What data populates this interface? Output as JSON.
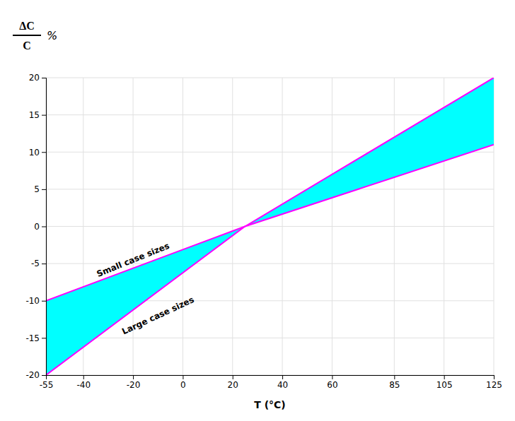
{
  "chart_data": {
    "type": "area",
    "xlabel": "T (°C)",
    "ylabel_top": "ΔC",
    "ylabel_bottom": "C",
    "ylabel_unit": "%",
    "x": [
      -55,
      25,
      125
    ],
    "series": [
      {
        "values": [
          -10,
          0,
          20
        ],
        "color": "#ff00ff"
      },
      {
        "values": [
          -20,
          0,
          11
        ],
        "color": "#ff00ff"
      }
    ],
    "color": "#00ffff",
    "xlim": [
      -55,
      125
    ],
    "ylim": [
      -20,
      20
    ],
    "xticks": [
      -55,
      -40,
      -20,
      0,
      20,
      40,
      60,
      85,
      105,
      125
    ],
    "yticks": [
      -20,
      -15,
      -10,
      -5,
      0,
      5,
      10,
      15,
      20
    ],
    "grid": true,
    "annotations": [
      {
        "text": "Small case sizes",
        "x": -20,
        "y": -4.5
      },
      {
        "text": "Large case sizes",
        "x": -10,
        "y": -12
      }
    ]
  }
}
